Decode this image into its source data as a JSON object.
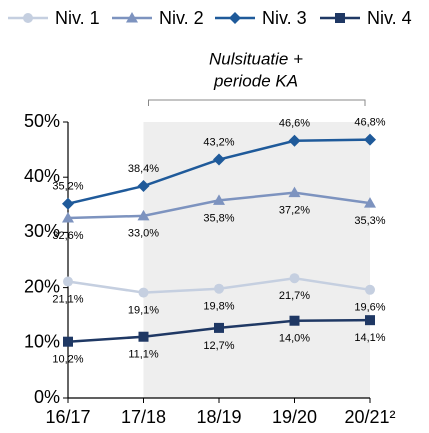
{
  "chart_data": {
    "type": "line",
    "categories": [
      "16/17",
      "17/18",
      "18/19",
      "19/20",
      "20/21²"
    ],
    "series": [
      {
        "name": "Niv. 1",
        "color": "#c5cfe0",
        "marker": "circle",
        "label_position": "below",
        "values": [
          21.1,
          19.1,
          19.8,
          21.7,
          19.6
        ],
        "value_labels": [
          "21,1%",
          "19,1%",
          "19,8%",
          "21,7%",
          "19,6%"
        ]
      },
      {
        "name": "Niv. 2",
        "color": "#7d93bf",
        "marker": "triangle",
        "label_position": "below",
        "values": [
          32.6,
          33.0,
          35.8,
          37.2,
          35.3
        ],
        "value_labels": [
          "32,6%",
          "33,0%",
          "35,8%",
          "37,2%",
          "35,3%"
        ]
      },
      {
        "name": "Niv. 3",
        "color": "#1f5a9a",
        "marker": "diamond",
        "label_position": "above",
        "values": [
          35.2,
          38.4,
          43.2,
          46.6,
          46.8
        ],
        "value_labels": [
          "35,2%",
          "38,4%",
          "43,2%",
          "46,6%",
          "46,8%"
        ]
      },
      {
        "name": "Niv. 4",
        "color": "#1f3864",
        "marker": "square",
        "label_position": "below",
        "values": [
          10.2,
          11.1,
          12.7,
          14.0,
          14.1
        ],
        "value_labels": [
          "10,2%",
          "11,1%",
          "12,7%",
          "14,0%",
          "14,1%"
        ]
      }
    ],
    "ylim": [
      0,
      50
    ],
    "yticks": [
      {
        "value": 0,
        "label": "0%"
      },
      {
        "value": 10,
        "label": "10%"
      },
      {
        "value": 20,
        "label": "20%"
      },
      {
        "value": 30,
        "label": "30%"
      },
      {
        "value": 40,
        "label": "40%"
      },
      {
        "value": 50,
        "label": "50%"
      }
    ],
    "annotation": {
      "lines": [
        "Nulsituatie +",
        "periode KA"
      ],
      "from_category": 1,
      "to_category": 4
    }
  }
}
